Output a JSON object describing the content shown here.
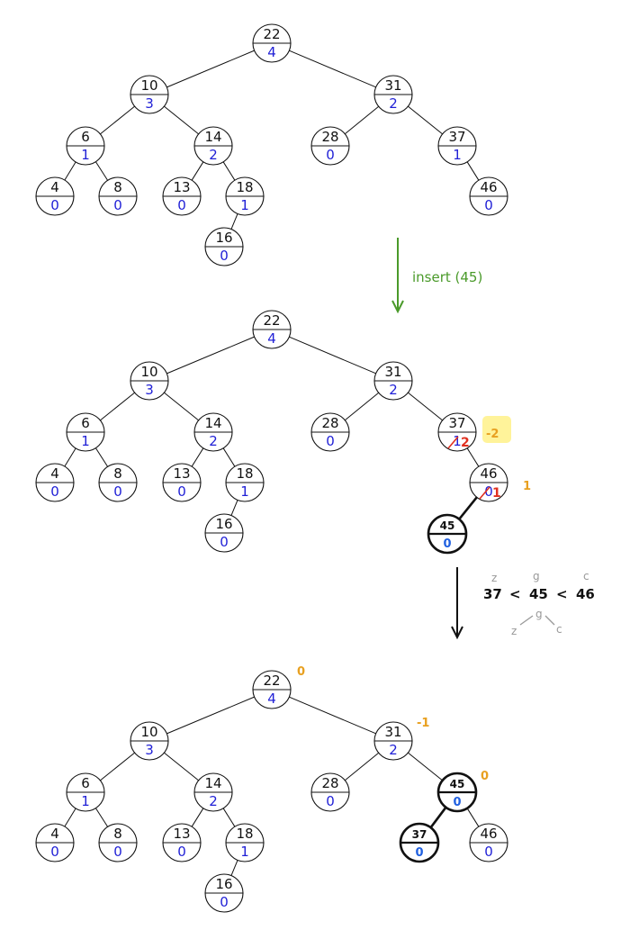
{
  "colors": {
    "balance": "#1f1fd6",
    "arrow_green": "#4a9a2a",
    "annotation_orange": "#e8a020",
    "annotation_red": "#e03020",
    "highlight": "#fff39a",
    "handwritten_blue": "#2060e0",
    "label_grey": "#999999"
  },
  "panels": [
    {
      "name": "before-insert",
      "nodes": [
        {
          "id": "n22",
          "key": "22",
          "balance": "4"
        },
        {
          "id": "n10",
          "key": "10",
          "balance": "3"
        },
        {
          "id": "n31",
          "key": "31",
          "balance": "2"
        },
        {
          "id": "n6",
          "key": "6",
          "balance": "1"
        },
        {
          "id": "n14",
          "key": "14",
          "balance": "2"
        },
        {
          "id": "n28",
          "key": "28",
          "balance": "0"
        },
        {
          "id": "n37",
          "key": "37",
          "balance": "1"
        },
        {
          "id": "n4",
          "key": "4",
          "balance": "0"
        },
        {
          "id": "n8",
          "key": "8",
          "balance": "0"
        },
        {
          "id": "n13",
          "key": "13",
          "balance": "0"
        },
        {
          "id": "n18",
          "key": "18",
          "balance": "1"
        },
        {
          "id": "n46",
          "key": "46",
          "balance": "0"
        },
        {
          "id": "n16",
          "key": "16",
          "balance": "0"
        }
      ]
    },
    {
      "name": "after-insert",
      "nodes": [
        {
          "id": "n22",
          "key": "22",
          "balance": "4"
        },
        {
          "id": "n10",
          "key": "10",
          "balance": "3"
        },
        {
          "id": "n31",
          "key": "31",
          "balance": "2"
        },
        {
          "id": "n6",
          "key": "6",
          "balance": "1"
        },
        {
          "id": "n14",
          "key": "14",
          "balance": "2"
        },
        {
          "id": "n28",
          "key": "28",
          "balance": "0"
        },
        {
          "id": "n37",
          "key": "37",
          "balance": "1"
        },
        {
          "id": "n4",
          "key": "4",
          "balance": "0"
        },
        {
          "id": "n8",
          "key": "8",
          "balance": "0"
        },
        {
          "id": "n13",
          "key": "13",
          "balance": "0"
        },
        {
          "id": "n18",
          "key": "18",
          "balance": "1"
        },
        {
          "id": "n46",
          "key": "46",
          "balance": "0"
        },
        {
          "id": "n16",
          "key": "16",
          "balance": "0"
        }
      ],
      "new_node": {
        "key": "45",
        "balance": "0"
      },
      "node37_new_balance": "2",
      "node46_new_balance": "1",
      "annotation_37": "-2",
      "annotation_46": "1"
    },
    {
      "name": "after-rotation",
      "nodes": [
        {
          "id": "n22",
          "key": "22",
          "balance": "4"
        },
        {
          "id": "n10",
          "key": "10",
          "balance": "3"
        },
        {
          "id": "n31",
          "key": "31",
          "balance": "2"
        },
        {
          "id": "n6",
          "key": "6",
          "balance": "1"
        },
        {
          "id": "n14",
          "key": "14",
          "balance": "2"
        },
        {
          "id": "n28",
          "key": "28",
          "balance": "0"
        },
        {
          "id": "n4",
          "key": "4",
          "balance": "0"
        },
        {
          "id": "n8",
          "key": "8",
          "balance": "0"
        },
        {
          "id": "n13",
          "key": "13",
          "balance": "0"
        },
        {
          "id": "n18",
          "key": "18",
          "balance": "1"
        },
        {
          "id": "n46",
          "key": "46",
          "balance": "0"
        },
        {
          "id": "n16",
          "key": "16",
          "balance": "0"
        }
      ],
      "hand_nodes": [
        {
          "id": "h45",
          "key": "45",
          "balance": "0"
        },
        {
          "id": "h37",
          "key": "37",
          "balance": "0"
        }
      ],
      "annotations": {
        "n22": "0",
        "n31": "-1",
        "h45": "0"
      }
    }
  ],
  "step1_label": "insert (45)",
  "step2": {
    "comparison": [
      "37",
      "<",
      "45",
      "<",
      "46"
    ],
    "top_letters": [
      "z",
      "g",
      "c"
    ],
    "mini_tree": {
      "root": "g",
      "left": "z",
      "right": "c"
    }
  }
}
